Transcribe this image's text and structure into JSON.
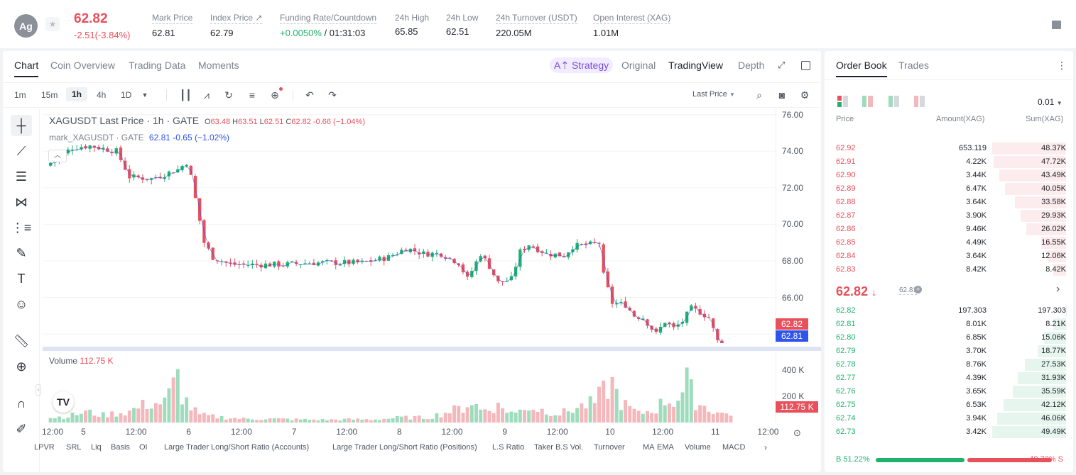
{
  "header": {
    "coin_icon": "Ag",
    "last_price": "62.82",
    "change": "-2.51(-3.84%)",
    "stats": [
      {
        "label": "Mark Price",
        "value": "62.81"
      },
      {
        "label": "Index Price ↗",
        "value": "62.79"
      },
      {
        "label": "Funding Rate/Countdown",
        "value_green": "+0.0050%",
        "value_rest": " / 01:31:03"
      },
      {
        "label": "24h High",
        "value": "65.85"
      },
      {
        "label": "24h Low",
        "value": "62.51"
      },
      {
        "label": "24h Turnover (USDT)",
        "value": "220.05M"
      },
      {
        "label": "Open Interest (XAG)",
        "value": "1.01M"
      }
    ]
  },
  "chart_tabs": {
    "items": [
      "Chart",
      "Coin Overview",
      "Trading Data",
      "Moments"
    ],
    "active": "Chart",
    "strategy": "Strategy",
    "views": [
      "Original",
      "TradingView",
      "Depth"
    ],
    "active_view": "TradingView"
  },
  "toolbar": {
    "intervals": [
      "1m",
      "15m",
      "1h",
      "4h",
      "1D"
    ],
    "selected_interval": "1h",
    "price_type": "Last Price"
  },
  "legend": {
    "symbol_line": "XAGUSDT Last Price · 1h · GATE",
    "ohlc": {
      "o": "63.48",
      "h": "63.51",
      "l": "62.51",
      "c": "62.82",
      "chg": "-0.66 (−1.04%)"
    },
    "mark_line": "mark_XAGUSDT · GATE",
    "mark_value": "62.81 -0.65 (−1.02%)"
  },
  "volume_label": {
    "name": "Volume",
    "value": "112.75 K"
  },
  "indicators": [
    "LPVR",
    "SRL",
    "Liq",
    "Basis",
    "OI",
    "Large Trader Long/Short Ratio (Accounts)",
    "Large Trader Long/Short Ratio (Positions)",
    "L.S Ratio",
    "Taker B.S Vol.",
    "Turnover",
    "MA",
    "EMA",
    "Volume",
    "MACD"
  ],
  "chart_data": {
    "type": "candlestick",
    "symbol": "XAGUSDT",
    "interval": "1h",
    "price_axis": {
      "ticks": [
        "76.00",
        "74.00",
        "72.00",
        "70.00",
        "68.00",
        "66.00",
        "64.00"
      ],
      "range": [
        63.5,
        76.3
      ]
    },
    "volume_axis": {
      "ticks": [
        "400 K",
        "200 K"
      ],
      "max": 520
    },
    "x_ticks": [
      "12:00",
      "5",
      "12:00",
      "6",
      "12:00",
      "7",
      "12:00",
      "8",
      "12:00",
      "9",
      "12:00",
      "10",
      "12:00",
      "11",
      "12:00"
    ],
    "x_range_hours": [
      0,
      156
    ],
    "last_price_tag": "62.82",
    "mark_price_tag": "62.81",
    "volume_tag": "112.75 K",
    "close_path": [
      [
        0,
        73.2
      ],
      [
        6,
        74.2
      ],
      [
        10,
        74.3
      ],
      [
        16,
        74.0
      ],
      [
        19,
        72.6
      ],
      [
        24,
        72.5
      ],
      [
        30,
        73.0
      ],
      [
        32,
        73.4
      ],
      [
        33,
        72.6
      ],
      [
        36,
        69.0
      ],
      [
        38,
        68.2
      ],
      [
        42,
        67.8
      ],
      [
        48,
        67.8
      ],
      [
        54,
        67.8
      ],
      [
        60,
        67.9
      ],
      [
        66,
        67.9
      ],
      [
        72,
        67.9
      ],
      [
        78,
        68.2
      ],
      [
        82,
        68.7
      ],
      [
        86,
        68.4
      ],
      [
        90,
        68.4
      ],
      [
        94,
        67.9
      ],
      [
        96,
        67.0
      ],
      [
        99,
        68.4
      ],
      [
        101,
        67.7
      ],
      [
        103,
        66.8
      ],
      [
        106,
        67.0
      ],
      [
        108,
        68.5
      ],
      [
        110,
        68.9
      ],
      [
        114,
        68.4
      ],
      [
        118,
        68.3
      ],
      [
        120,
        68.8
      ],
      [
        124,
        68.9
      ],
      [
        126,
        69.0
      ],
      [
        127,
        67.2
      ],
      [
        129,
        65.7
      ],
      [
        132,
        65.6
      ],
      [
        134,
        65.0
      ],
      [
        136,
        64.9
      ],
      [
        139,
        64.0
      ],
      [
        141,
        64.7
      ],
      [
        143,
        64.3
      ],
      [
        145,
        64.7
      ],
      [
        147,
        65.4
      ],
      [
        149,
        65.2
      ],
      [
        151,
        64.9
      ],
      [
        153,
        63.6
      ],
      [
        155,
        62.82
      ]
    ],
    "volume_profile": [
      [
        0,
        40
      ],
      [
        4,
        50
      ],
      [
        8,
        85
      ],
      [
        12,
        60
      ],
      [
        18,
        90
      ],
      [
        22,
        150
      ],
      [
        26,
        160
      ],
      [
        28,
        290
      ],
      [
        29,
        370
      ],
      [
        30,
        220
      ],
      [
        32,
        120
      ],
      [
        34,
        60
      ],
      [
        38,
        45
      ],
      [
        44,
        30
      ],
      [
        50,
        30
      ],
      [
        56,
        25
      ],
      [
        62,
        22
      ],
      [
        68,
        25
      ],
      [
        74,
        25
      ],
      [
        80,
        40
      ],
      [
        86,
        40
      ],
      [
        90,
        80
      ],
      [
        94,
        120
      ],
      [
        96,
        170
      ],
      [
        98,
        100
      ],
      [
        102,
        130
      ],
      [
        106,
        70
      ],
      [
        108,
        130
      ],
      [
        112,
        100
      ],
      [
        116,
        70
      ],
      [
        120,
        120
      ],
      [
        124,
        160
      ],
      [
        126,
        250
      ],
      [
        128,
        310
      ],
      [
        130,
        160
      ],
      [
        134,
        70
      ],
      [
        138,
        110
      ],
      [
        140,
        180
      ],
      [
        142,
        170
      ],
      [
        144,
        240
      ],
      [
        145,
        330
      ],
      [
        147,
        170
      ],
      [
        150,
        110
      ],
      [
        153,
        70
      ],
      [
        155,
        75
      ]
    ]
  },
  "orderbook": {
    "tabs": [
      "Order Book",
      "Trades"
    ],
    "active_tab": "Order Book",
    "precision": "0.01",
    "headers": {
      "price": "Price",
      "amount": "Amount(XAG)",
      "sum": "Sum(XAG)"
    },
    "asks": [
      {
        "price": "62.92",
        "amount": "653.119",
        "sum": "48.37K",
        "depth": 1.0
      },
      {
        "price": "62.91",
        "amount": "4.22K",
        "sum": "47.72K",
        "depth": 0.985
      },
      {
        "price": "62.90",
        "amount": "3.44K",
        "sum": "43.49K",
        "depth": 0.9
      },
      {
        "price": "62.89",
        "amount": "6.47K",
        "sum": "40.05K",
        "depth": 0.83
      },
      {
        "price": "62.88",
        "amount": "3.64K",
        "sum": "33.58K",
        "depth": 0.69
      },
      {
        "price": "62.87",
        "amount": "3.90K",
        "sum": "29.93K",
        "depth": 0.62
      },
      {
        "price": "62.86",
        "amount": "9.46K",
        "sum": "26.02K",
        "depth": 0.54
      },
      {
        "price": "62.85",
        "amount": "4.49K",
        "sum": "16.55K",
        "depth": 0.34
      },
      {
        "price": "62.84",
        "amount": "3.64K",
        "sum": "12.06K",
        "depth": 0.25
      },
      {
        "price": "62.83",
        "amount": "8.42K",
        "sum": "8.42K",
        "depth": 0.17
      }
    ],
    "mid_price": "62.82",
    "mid_arrow": "↓",
    "mark": "62.81",
    "bids": [
      {
        "price": "62.82",
        "amount": "197.303",
        "sum": "197.303",
        "depth": 0.004
      },
      {
        "price": "62.81",
        "amount": "8.01K",
        "sum": "8.21K",
        "depth": 0.17
      },
      {
        "price": "62.80",
        "amount": "6.85K",
        "sum": "15.06K",
        "depth": 0.3
      },
      {
        "price": "62.79",
        "amount": "3.70K",
        "sum": "18.77K",
        "depth": 0.38
      },
      {
        "price": "62.78",
        "amount": "8.76K",
        "sum": "27.53K",
        "depth": 0.56
      },
      {
        "price": "62.77",
        "amount": "4.39K",
        "sum": "31.93K",
        "depth": 0.65
      },
      {
        "price": "62.76",
        "amount": "3.65K",
        "sum": "35.59K",
        "depth": 0.72
      },
      {
        "price": "62.75",
        "amount": "6.53K",
        "sum": "42.12K",
        "depth": 0.85
      },
      {
        "price": "62.74",
        "amount": "3.94K",
        "sum": "46.06K",
        "depth": 0.93
      },
      {
        "price": "62.73",
        "amount": "3.42K",
        "sum": "49.49K",
        "depth": 1.0
      }
    ],
    "buy_ratio": "B 51.22%",
    "sell_ratio": "48.78% S",
    "buy_fraction": 0.5122
  },
  "colors": {
    "up": "#20b26c",
    "down": "#e8505b",
    "accent": "#7b4ddb",
    "mark_tag": "#2f54eb"
  }
}
